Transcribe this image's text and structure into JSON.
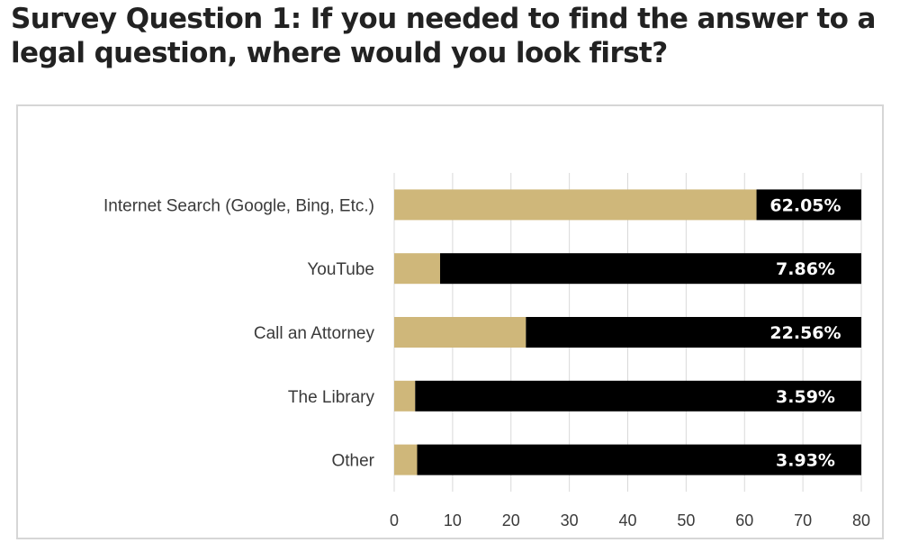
{
  "page": {
    "title": "Survey Question 1: If you needed to find the answer to a legal question, where would you look first?"
  },
  "chart_data": {
    "type": "bar",
    "orientation": "horizontal",
    "stacked": true,
    "categories": [
      "Internet Search (Google, Bing, Etc.)",
      "YouTube",
      "Call an Attorney",
      "The Library",
      "Other"
    ],
    "values": [
      62.05,
      7.86,
      22.56,
      3.59,
      3.93
    ],
    "data_labels": [
      "62.05%",
      "7.86%",
      "22.56%",
      "3.59%",
      "3.93%"
    ],
    "remainder_to": 80,
    "xlim": [
      0,
      80
    ],
    "xticks": [
      0,
      10,
      20,
      30,
      40,
      50,
      60,
      70,
      80
    ],
    "grid": "vertical",
    "legend": "none",
    "colors": {
      "value": "#cfb77a",
      "remainder": "#000000",
      "grid": "#d9d9d9",
      "label": "#ffffff"
    }
  }
}
